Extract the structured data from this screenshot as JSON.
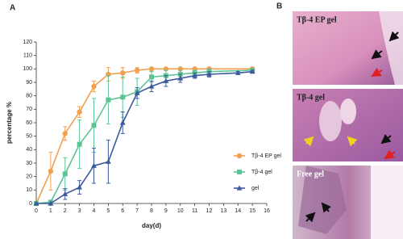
{
  "chart_data": {
    "type": "line",
    "panel_label": "A",
    "xlabel": "day(d)",
    "ylabel": "percentage %",
    "xlim": [
      0,
      16
    ],
    "xticks": [
      0,
      1,
      2,
      3,
      4,
      5,
      6,
      7,
      8,
      9,
      10,
      11,
      12,
      13,
      14,
      15,
      16
    ],
    "ylim": [
      0,
      120
    ],
    "yticks": [
      0,
      10,
      20,
      30,
      40,
      50,
      60,
      70,
      80,
      90,
      100,
      110,
      120
    ],
    "legend": "right",
    "series": [
      {
        "name": "Tβ-4 EP gel",
        "color": "#f0a050",
        "marker": "circle",
        "x": [
          0,
          1,
          2,
          3,
          4,
          5,
          6,
          7,
          8,
          9,
          10,
          11,
          12,
          15
        ],
        "values": [
          0,
          24,
          52,
          68,
          87,
          96,
          97,
          99,
          100,
          100,
          100,
          100,
          100,
          100
        ],
        "errors": [
          0,
          14,
          5,
          4,
          4,
          5,
          4,
          2,
          1,
          1,
          1,
          1,
          1,
          1
        ]
      },
      {
        "name": "Tβ-4 gel",
        "color": "#5dc495",
        "marker": "square",
        "x": [
          0,
          1,
          2,
          3,
          4,
          5,
          6,
          7,
          8,
          9,
          10,
          11,
          12,
          15
        ],
        "values": [
          0,
          1,
          22,
          44,
          58,
          77,
          79,
          83,
          94,
          95,
          96,
          97,
          98,
          99
        ],
        "errors": [
          0,
          1,
          12,
          18,
          20,
          18,
          15,
          10,
          4,
          4,
          3,
          2,
          2,
          1
        ]
      },
      {
        "name": "gel",
        "color": "#3d5a9e",
        "marker": "triangle",
        "x": [
          0,
          1,
          2,
          3,
          4,
          5,
          6,
          7,
          8,
          9,
          10,
          11,
          12,
          14,
          15
        ],
        "values": [
          0,
          0,
          7,
          12,
          28,
          31,
          60,
          82,
          87,
          91,
          93,
          95,
          96,
          97,
          98
        ],
        "errors": [
          0,
          0,
          4,
          5,
          13,
          16,
          8,
          4,
          4,
          4,
          3,
          2,
          2,
          1,
          1
        ]
      }
    ]
  },
  "panel_b": {
    "label": "B",
    "images": [
      "Tβ-4 EP gel",
      "Tβ-4 gel",
      "Free gel"
    ]
  }
}
